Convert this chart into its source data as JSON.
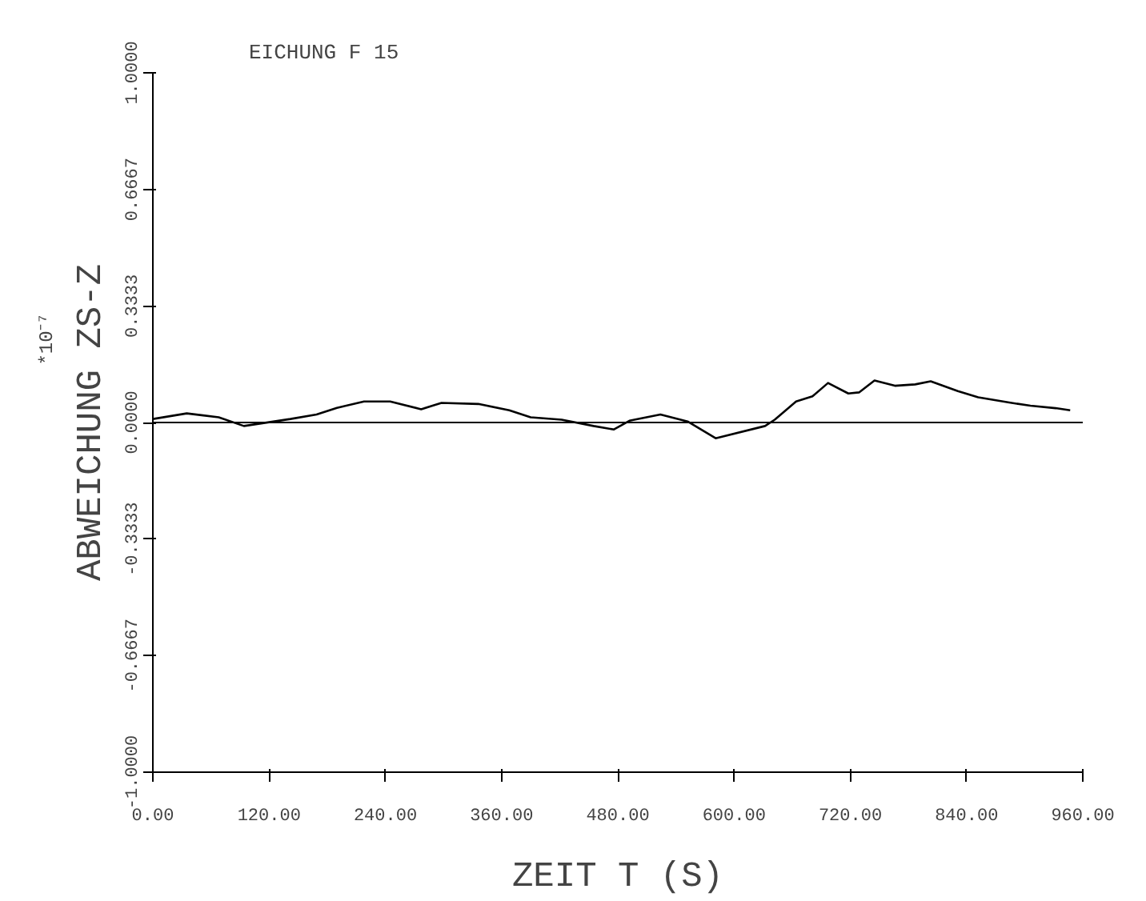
{
  "chart_data": {
    "type": "line",
    "title": "EICHUNG F 15",
    "xlabel": "ZEIT T (S)",
    "ylabel": "ABWEICHUNG ZS-Z",
    "annotations": [
      "*10⁻⁷"
    ],
    "x": [
      0,
      35,
      68,
      94,
      142,
      169,
      190,
      218,
      245,
      277,
      298,
      336,
      368,
      390,
      422,
      455,
      476,
      492,
      524,
      552,
      581,
      632,
      642,
      664,
      681,
      697,
      718,
      729,
      745,
      766,
      787,
      803,
      831,
      852,
      884,
      906,
      932,
      947
    ],
    "series": [
      {
        "color": "#000000",
        "values": [
          0.01,
          0.026,
          0.015,
          -0.01,
          0.01,
          0.023,
          0.042,
          0.06,
          0.06,
          0.038,
          0.056,
          0.053,
          0.035,
          0.015,
          0.008,
          -0.01,
          -0.02,
          0.005,
          0.023,
          0.003,
          -0.045,
          -0.01,
          0.008,
          0.06,
          0.075,
          0.113,
          0.083,
          0.086,
          0.12,
          0.105,
          0.109,
          0.118,
          0.09,
          0.072,
          0.057,
          0.048,
          0.041,
          0.035
        ]
      }
    ],
    "xlim": [
      0,
      960
    ],
    "ylim": [
      -1,
      1
    ],
    "xticks": [
      {
        "value": 0,
        "label": "0.00"
      },
      {
        "value": 120,
        "label": "120.00"
      },
      {
        "value": 240,
        "label": "240.00"
      },
      {
        "value": 360,
        "label": "360.00"
      },
      {
        "value": 480,
        "label": "480.00"
      },
      {
        "value": 600,
        "label": "600.00"
      },
      {
        "value": 720,
        "label": "720.00"
      },
      {
        "value": 840,
        "label": "840.00"
      },
      {
        "value": 960,
        "label": "960.00"
      }
    ],
    "yticks": [
      {
        "value": -1,
        "label": "-1.0000"
      },
      {
        "value": -0.6667,
        "label": "-0.6667"
      },
      {
        "value": -0.3333,
        "label": "-0.3333"
      },
      {
        "value": 0,
        "label": "0.0000"
      },
      {
        "value": 0.3333,
        "label": "0.3333"
      },
      {
        "value": 0.6667,
        "label": "0.6667"
      },
      {
        "value": 1,
        "label": "1.0000"
      }
    ],
    "ref_lines": [
      {
        "axis": "y",
        "value": 0,
        "color": "#000000"
      }
    ],
    "grid": false,
    "marker": "none",
    "line_style": "solid"
  }
}
